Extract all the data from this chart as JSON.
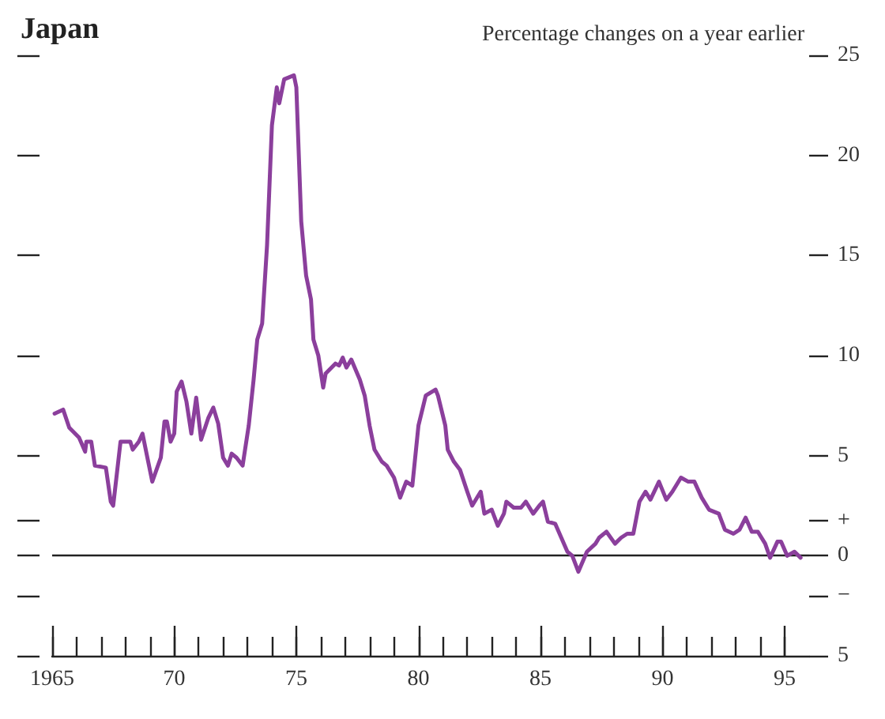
{
  "chart_data": {
    "type": "line",
    "title": "Japan",
    "subtitle": "Percentage changes on a year earlier",
    "x": [
      1965.1,
      1965.45,
      1965.7,
      1966.1,
      1966.35,
      1966.4,
      1966.6,
      1966.75,
      1967.2,
      1967.4,
      1967.5,
      1967.8,
      1968.2,
      1968.3,
      1968.55,
      1968.7,
      1968.9,
      1969.1,
      1969.45,
      1969.6,
      1969.7,
      1969.85,
      1970,
      1970.1,
      1970.3,
      1970.5,
      1970.7,
      1970.9,
      1971.1,
      1971.4,
      1971.6,
      1971.8,
      1972,
      1972.2,
      1972.35,
      1972.55,
      1972.8,
      1973.05,
      1973.25,
      1973.4,
      1973.6,
      1973.8,
      1974,
      1974.2,
      1974.3,
      1974.5,
      1974.9,
      1975,
      1975.2,
      1975.4,
      1975.6,
      1975.7,
      1975.9,
      1976.1,
      1976.2,
      1976.6,
      1976.75,
      1976.9,
      1977.05,
      1977.25,
      1977.6,
      1977.8,
      1978,
      1978.2,
      1978.5,
      1978.7,
      1979,
      1979.25,
      1979.5,
      1979.75,
      1980,
      1980.3,
      1980.7,
      1980.8,
      1981.1,
      1981.2,
      1981.45,
      1981.7,
      1982,
      1982.2,
      1982.55,
      1982.7,
      1983,
      1983.25,
      1983.5,
      1983.6,
      1983.9,
      1984.2,
      1984.4,
      1984.7,
      1984.95,
      1985.1,
      1985.3,
      1985.6,
      1985.85,
      1986.1,
      1986.3,
      1986.55,
      1986.9,
      1987.25,
      1987.4,
      1987.7,
      1988.05,
      1988.3,
      1988.55,
      1988.8,
      1989.05,
      1989.3,
      1989.5,
      1989.85,
      1990.15,
      1990.4,
      1990.75,
      1991.05,
      1991.3,
      1991.6,
      1991.9,
      1992.3,
      1992.55,
      1992.9,
      1993.15,
      1993.4,
      1993.65,
      1993.9,
      1994.2,
      1994.4,
      1994.7,
      1994.85,
      1995.1,
      1995.4,
      1995.65
    ],
    "series": [
      {
        "color": "#8b3f9c",
        "values": [
          7.1,
          7.3,
          6.4,
          5.9,
          5.2,
          5.7,
          5.7,
          4.5,
          4.4,
          2.7,
          2.5,
          5.7,
          5.7,
          5.3,
          5.7,
          6.1,
          4.9,
          3.7,
          4.9,
          6.7,
          6.7,
          5.7,
          6.1,
          8.2,
          8.7,
          7.7,
          6.1,
          7.9,
          5.8,
          6.9,
          7.4,
          6.6,
          4.9,
          4.5,
          5.1,
          4.9,
          4.5,
          6.5,
          8.8,
          10.8,
          11.6,
          15.5,
          21.5,
          23.4,
          22.6,
          23.8,
          24.0,
          23.4,
          16.7,
          14.0,
          12.8,
          10.8,
          10.0,
          8.4,
          9.1,
          9.6,
          9.5,
          9.9,
          9.4,
          9.8,
          8.8,
          8.0,
          6.5,
          5.3,
          4.7,
          4.5,
          3.9,
          2.9,
          3.7,
          3.5,
          6.5,
          8.0,
          8.3,
          8.0,
          6.5,
          5.3,
          4.7,
          4.3,
          3.2,
          2.5,
          3.2,
          2.1,
          2.3,
          1.5,
          2.1,
          2.7,
          2.4,
          2.4,
          2.7,
          2.1,
          2.5,
          2.7,
          1.7,
          1.6,
          0.9,
          0.2,
          0.0,
          -0.8,
          0.2,
          0.6,
          0.9,
          1.2,
          0.6,
          0.9,
          1.1,
          1.1,
          2.7,
          3.2,
          2.8,
          3.7,
          2.8,
          3.2,
          3.9,
          3.7,
          3.7,
          2.9,
          2.3,
          2.1,
          1.3,
          1.1,
          1.3,
          1.9,
          1.2,
          1.2,
          0.6,
          -0.1,
          0.7,
          0.7,
          0.0,
          0.2,
          -0.1
        ]
      }
    ],
    "xlim": [
      1965,
      1996
    ],
    "xticks": [
      1965,
      {
        "value": 1966,
        "label": null
      },
      {
        "value": 1967,
        "label": null
      },
      {
        "value": 1968,
        "label": null
      },
      {
        "value": 1969,
        "label": null
      },
      {
        "value": 1970,
        "label": "70"
      },
      {
        "value": 1971,
        "label": null
      },
      {
        "value": 1972,
        "label": null
      },
      {
        "value": 1973,
        "label": null
      },
      {
        "value": 1974,
        "label": null
      },
      {
        "value": 1975,
        "label": "75"
      },
      {
        "value": 1976,
        "label": null
      },
      {
        "value": 1977,
        "label": null
      },
      {
        "value": 1978,
        "label": null
      },
      {
        "value": 1979,
        "label": null
      },
      {
        "value": 1980,
        "label": "80"
      },
      {
        "value": 1981,
        "label": null
      },
      {
        "value": 1982,
        "label": null
      },
      {
        "value": 1983,
        "label": null
      },
      {
        "value": 1984,
        "label": null
      },
      {
        "value": 1985,
        "label": "85"
      },
      {
        "value": 1986,
        "label": null
      },
      {
        "value": 1987,
        "label": null
      },
      {
        "value": 1988,
        "label": null
      },
      {
        "value": 1989,
        "label": null
      },
      {
        "value": 1990,
        "label": "90"
      },
      {
        "value": 1991,
        "label": null
      },
      {
        "value": 1992,
        "label": null
      },
      {
        "value": 1993,
        "label": null
      },
      {
        "value": 1994,
        "label": null
      },
      {
        "value": 1995,
        "label": "95"
      }
    ],
    "ylim": [
      -5,
      25
    ],
    "yticks": [
      {
        "value": -5,
        "label": "5"
      },
      {
        "value": -2,
        "label": "−"
      },
      0,
      {
        "value": 1.75,
        "label": "+"
      },
      5,
      10,
      15,
      20,
      25
    ],
    "ref_lines": [
      {
        "axis": "y",
        "value": 0,
        "color": "#222222"
      }
    ],
    "grid": false,
    "marker": "none",
    "line_style": "solid"
  }
}
